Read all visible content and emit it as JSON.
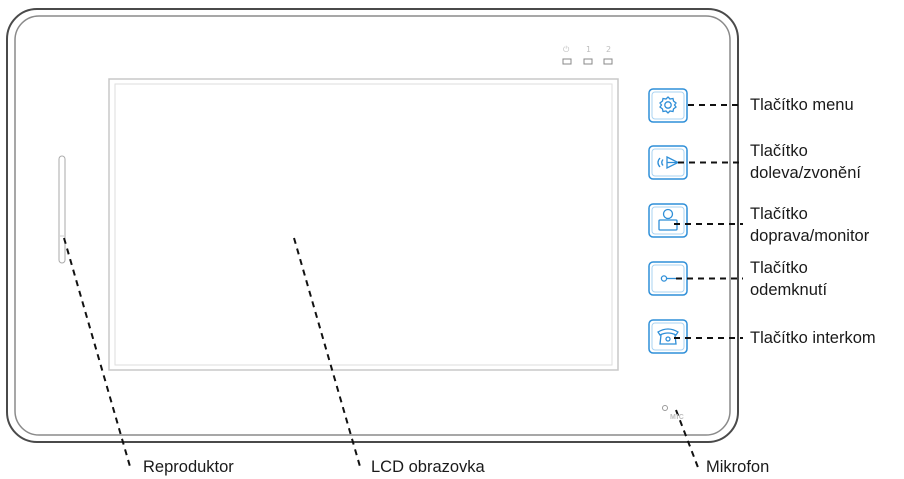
{
  "leds": [
    "⏻",
    "1",
    "2"
  ],
  "mic_label": "MIC",
  "buttons": [
    {
      "icon": "gear-icon",
      "label": "Tlačítko menu"
    },
    {
      "icon": "bell-speaker-icon",
      "label": "Tlačítko doleva/zvonění"
    },
    {
      "icon": "monitor-person-icon",
      "label": "Tlačítko doprava/monitor"
    },
    {
      "icon": "key-icon",
      "label": "Tlačítko odemknutí"
    },
    {
      "icon": "phone-icon",
      "label": "Tlačítko interkom"
    }
  ],
  "labels": {
    "menu": "Tlačítko menu",
    "ring_l1": "Tlačítko",
    "ring_l2": "doleva/zvonění",
    "monitor_l1": "Tlačítko",
    "monitor_l2": "doprava/monitor",
    "unlock_l1": "Tlačítko",
    "unlock_l2": "odemknutí",
    "intercom": "Tlačítko interkom",
    "speaker": "Reproduktor",
    "lcd": "LCD obrazovka",
    "mic": "Mikrofon"
  },
  "colors": {
    "button_accent": "#2f8fd8",
    "outline": "#555555"
  }
}
